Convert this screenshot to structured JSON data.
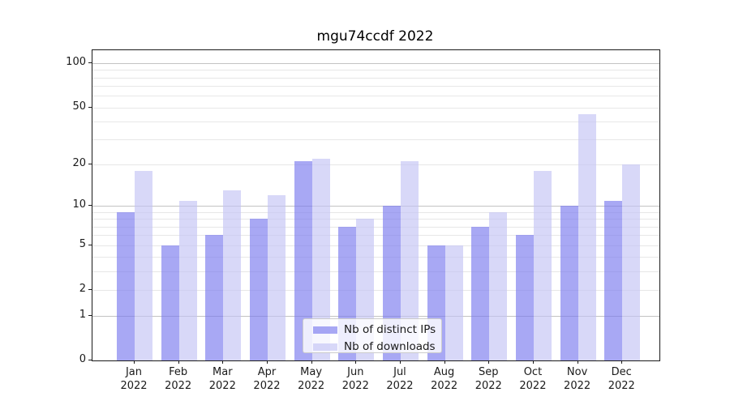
{
  "title": "mgu74ccdf 2022",
  "legend": {
    "items": [
      {
        "label": "Nb of distinct IPs",
        "color": "#7979ee",
        "alpha": 0.65
      },
      {
        "label": "Nb of downloads",
        "color": "#c3c3f5",
        "alpha": 0.65
      }
    ]
  },
  "chart_data": {
    "type": "bar",
    "title": "mgu74ccdf 2022",
    "categories": [
      "Jan",
      "Feb",
      "Mar",
      "Apr",
      "May",
      "Jun",
      "Jul",
      "Aug",
      "Sep",
      "Oct",
      "Nov",
      "Dec"
    ],
    "year_label": "2022",
    "series": [
      {
        "name": "Nb of distinct IPs",
        "values": [
          9,
          5,
          6,
          8,
          21,
          7,
          10,
          5,
          7,
          6,
          10,
          11
        ]
      },
      {
        "name": "Nb of downloads",
        "values": [
          18,
          11,
          13,
          12,
          22,
          8,
          21,
          5,
          9,
          18,
          45,
          20
        ]
      }
    ],
    "yscale": "log-like (log10 of 1+value), 0 at baseline",
    "yticks": [
      0,
      1,
      2,
      5,
      10,
      20,
      50,
      100
    ],
    "ylim": [
      0,
      122
    ],
    "grid": {
      "major": [
        1,
        10,
        100
      ],
      "minor": [
        2,
        3,
        4,
        5,
        6,
        7,
        8,
        9,
        20,
        30,
        40,
        50,
        60,
        70,
        80,
        90
      ]
    },
    "legend_position": "lower center",
    "grid_on": true
  }
}
